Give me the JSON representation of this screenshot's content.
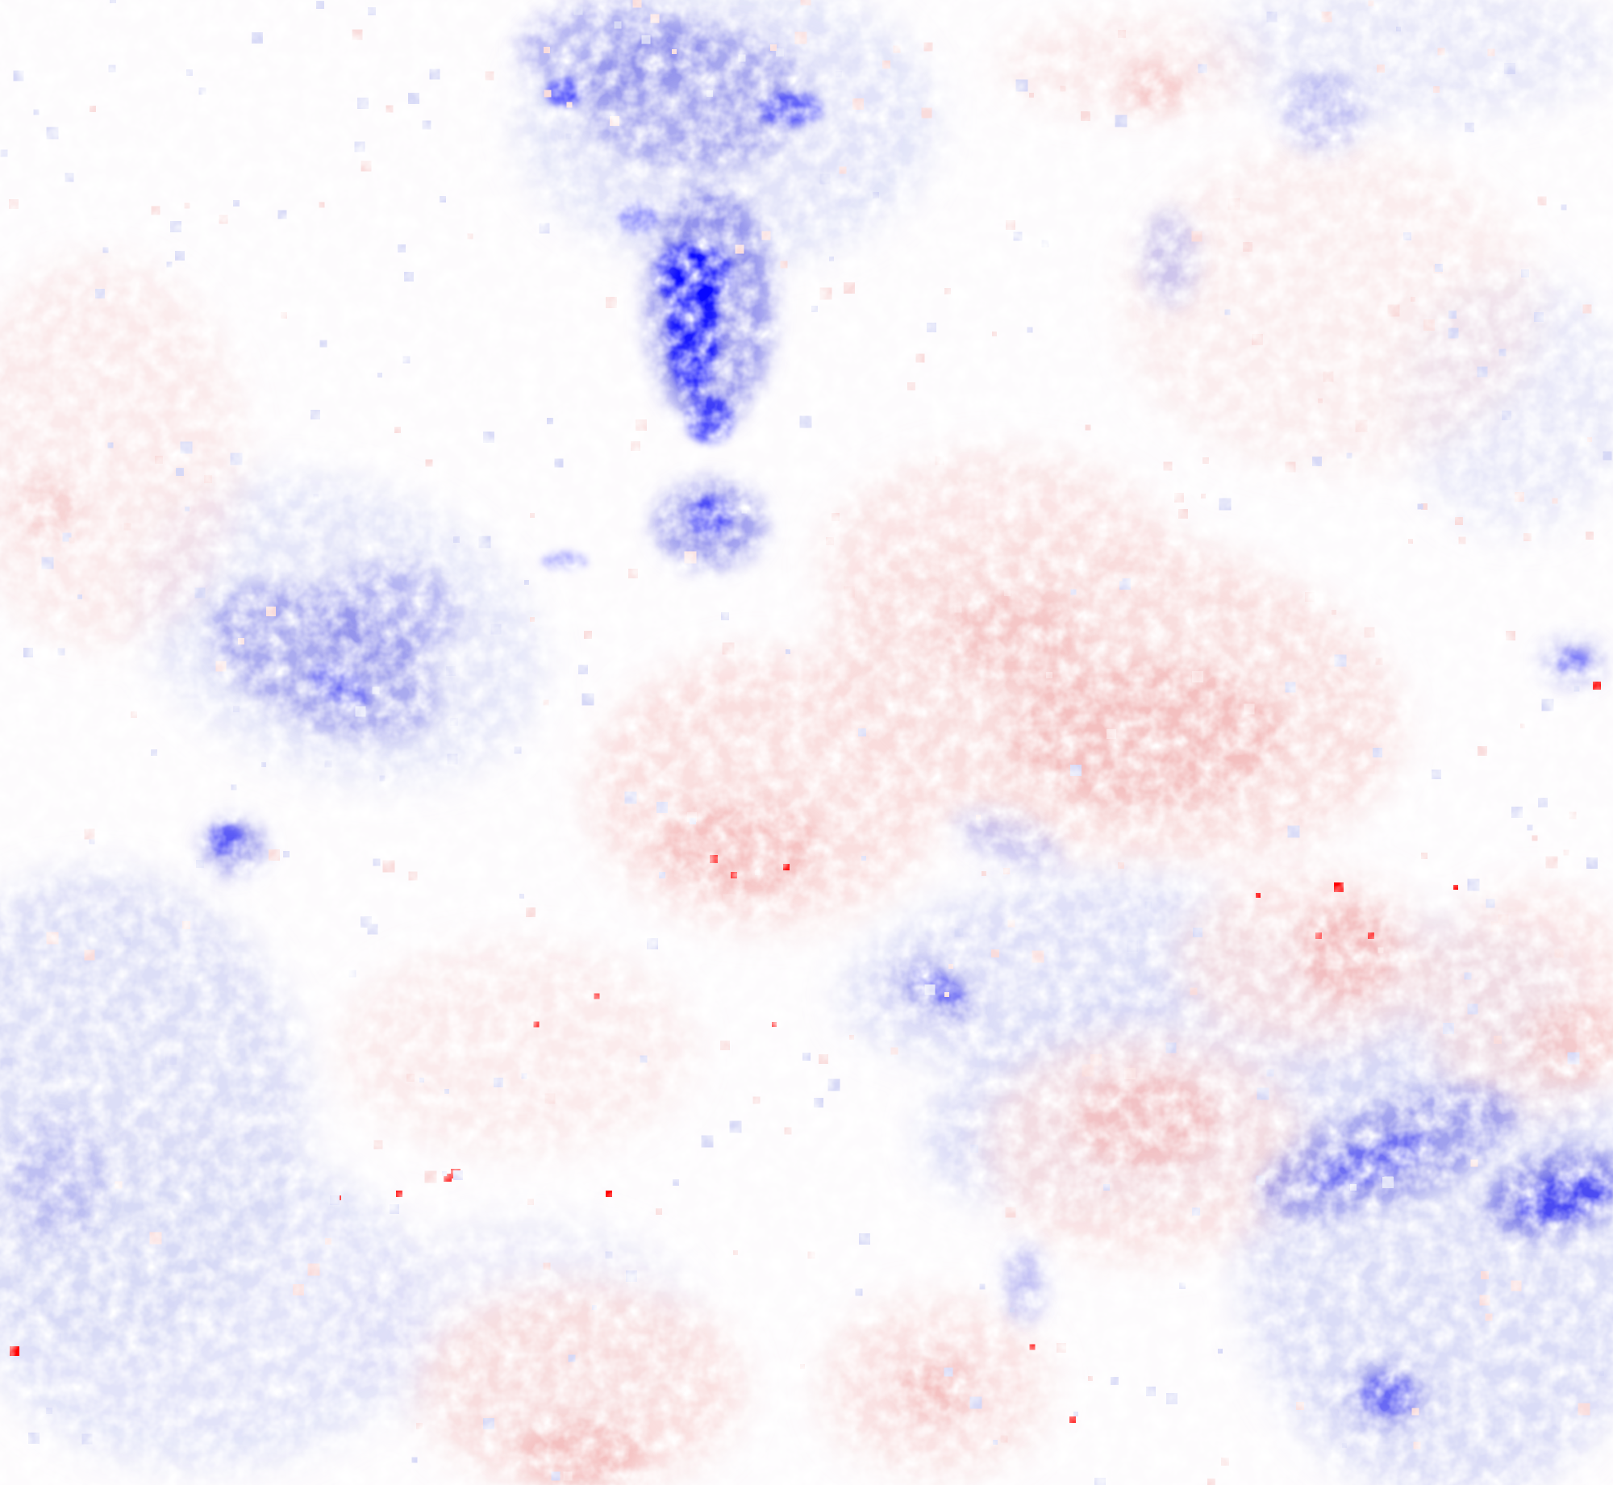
{
  "map": {
    "kind": "diverging raster map",
    "legend": "none printed",
    "colors": {
      "negative_strong": "#0000ff",
      "negative_mid": "#7a7ae8",
      "negative_light": "#d6d8f6",
      "neutral": "#ffffff",
      "positive_light": "#f9dcdc",
      "positive_mid": "#f1a8a8",
      "positive_strong": "#ff0000"
    }
  }
}
